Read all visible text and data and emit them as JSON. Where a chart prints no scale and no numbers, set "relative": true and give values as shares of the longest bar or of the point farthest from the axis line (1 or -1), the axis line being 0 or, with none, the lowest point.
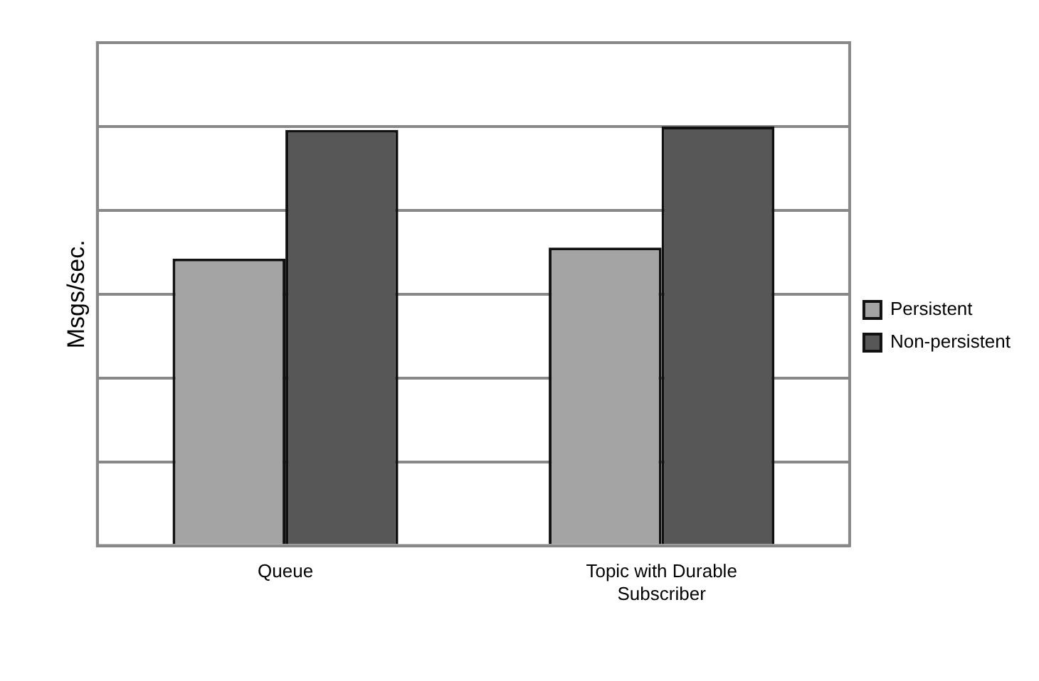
{
  "chart_data": {
    "type": "bar",
    "ylabel": "Msgs/sec.",
    "categories": [
      "Queue",
      "Topic with Durable Subscriber"
    ],
    "series": [
      {
        "name": "Persistent",
        "color": "#a4a4a4",
        "values": [
          0.685,
          0.711
        ]
      },
      {
        "name": "Non-persistent",
        "color": "#575757",
        "values": [
          0.992,
          1
        ]
      }
    ],
    "relative": true,
    "grid": "y",
    "legend": "right"
  }
}
